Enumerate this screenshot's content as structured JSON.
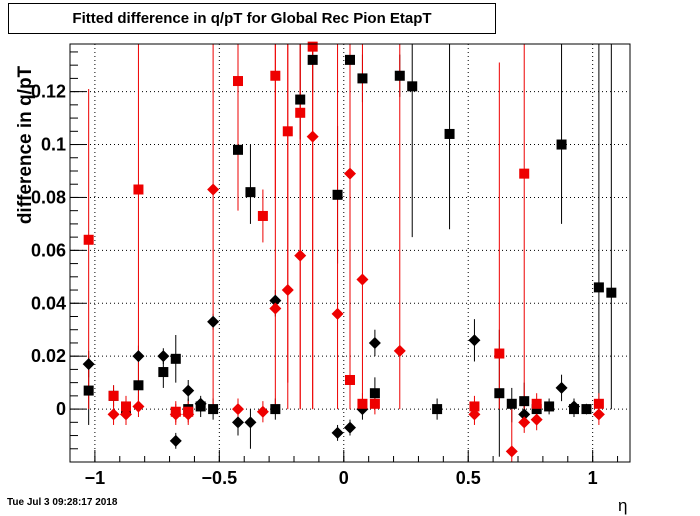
{
  "header": {
    "title": "Fitted difference in q/pT for Global Rec Pion EtapT",
    "timestamp": "Tue Jul  3 09:28:17 2018"
  },
  "chart_data": {
    "type": "scatter",
    "title": "Fitted difference in q/pT for Global Rec Pion EtapT",
    "xlabel": "η",
    "ylabel": "difference in q/pT",
    "xlim": [
      -1.1,
      1.15
    ],
    "ylim": [
      -0.02,
      0.138
    ],
    "x_ticks": [
      {
        "value": -1,
        "label": "−1"
      },
      {
        "value": -0.5,
        "label": "−0.5"
      },
      {
        "value": 0,
        "label": "0"
      },
      {
        "value": 0.5,
        "label": "0.5"
      },
      {
        "value": 1,
        "label": "1"
      }
    ],
    "y_ticks": [
      {
        "value": 0,
        "label": "0"
      },
      {
        "value": 0.02,
        "label": "0.02"
      },
      {
        "value": 0.04,
        "label": "0.04"
      },
      {
        "value": 0.06,
        "label": "0.06"
      },
      {
        "value": 0.08,
        "label": "0.08"
      },
      {
        "value": 0.1,
        "label": "0.1"
      },
      {
        "value": 0.12,
        "label": "0.12"
      }
    ],
    "grid": true,
    "colors": {
      "black": "#000000",
      "red": "#ee0000"
    },
    "series": [
      {
        "color": "black",
        "marker": "square",
        "points": [
          [
            -1.025,
            0.007,
            -0.006,
            0.02
          ],
          [
            -0.925,
            0.005,
            0.001,
            0.009
          ],
          [
            -0.875,
            0.0,
            -0.003,
            0.003
          ],
          [
            -0.825,
            0.009,
            0.003,
            0.016
          ],
          [
            -0.725,
            0.014,
            0.008,
            0.02
          ],
          [
            -0.675,
            0.019,
            0.01,
            0.028
          ],
          [
            -0.625,
            0.0,
            -0.004,
            0.004
          ],
          [
            -0.575,
            0.001,
            -0.003,
            0.004
          ],
          [
            -0.525,
            0.0,
            -0.004,
            0.004
          ],
          [
            -0.425,
            0.098,
            0.09,
            0.106
          ],
          [
            -0.375,
            0.082,
            0.07,
            0.1
          ],
          [
            -0.275,
            0.0,
            -0.004,
            0.004
          ],
          [
            -0.175,
            0.117,
            0.102,
            0.138
          ],
          [
            -0.125,
            0.132,
            0.12,
            0.138
          ],
          [
            -0.025,
            0.081,
            0.055,
            0.107
          ],
          [
            0.025,
            0.132,
            0.124,
            0.138
          ],
          [
            0.075,
            0.125,
            0.116,
            0.134
          ],
          [
            0.125,
            0.006,
            0.0,
            0.012
          ],
          [
            0.225,
            0.126,
            0.118,
            0.134
          ],
          [
            0.275,
            0.122,
            0.065,
            0.138
          ],
          [
            0.375,
            0.0,
            -0.004,
            0.004
          ],
          [
            0.425,
            0.104,
            0.068,
            0.138
          ],
          [
            0.625,
            0.006,
            -0.018,
            0.03
          ],
          [
            0.675,
            0.002,
            -0.005,
            0.008
          ],
          [
            0.725,
            0.003,
            -0.003,
            0.01
          ],
          [
            0.775,
            0.0,
            -0.002,
            0.003
          ],
          [
            0.825,
            0.001,
            -0.002,
            0.004
          ],
          [
            0.875,
            0.1,
            0.07,
            0.138
          ],
          [
            0.925,
            0.0,
            -0.003,
            0.003
          ],
          [
            0.975,
            0.0,
            -0.002,
            0.002
          ],
          [
            1.025,
            0.046,
            0.0,
            0.138
          ],
          [
            1.075,
            0.044,
            0.0,
            0.138
          ]
        ]
      },
      {
        "color": "black",
        "marker": "diamond",
        "points": [
          [
            -1.025,
            0.017,
            0.012,
            0.022
          ],
          [
            -0.825,
            0.02,
            0.016,
            0.024
          ],
          [
            -0.725,
            0.02,
            0.017,
            0.023
          ],
          [
            -0.675,
            -0.012,
            -0.015,
            -0.009
          ],
          [
            -0.625,
            0.007,
            0.003,
            0.011
          ],
          [
            -0.575,
            0.002,
            -0.001,
            0.005
          ],
          [
            -0.525,
            0.033,
            0.03,
            0.036
          ],
          [
            -0.425,
            -0.005,
            -0.01,
            0.0
          ],
          [
            -0.375,
            -0.005,
            -0.015,
            0.0
          ],
          [
            -0.275,
            0.041,
            0.035,
            0.045
          ],
          [
            -0.025,
            -0.009,
            -0.012,
            -0.006
          ],
          [
            0.025,
            -0.007,
            -0.01,
            -0.004
          ],
          [
            0.075,
            0.0,
            -0.004,
            0.004
          ],
          [
            0.125,
            0.025,
            0.02,
            0.03
          ],
          [
            0.525,
            0.026,
            0.018,
            0.034
          ],
          [
            0.725,
            -0.002,
            -0.006,
            0.002
          ],
          [
            0.875,
            0.008,
            0.003,
            0.013
          ],
          [
            0.925,
            0.001,
            -0.002,
            0.004
          ]
        ]
      },
      {
        "color": "red",
        "marker": "square",
        "points": [
          [
            -1.025,
            0.064,
            0.0,
            0.121
          ],
          [
            -0.925,
            0.005,
            0.001,
            0.009
          ],
          [
            -0.875,
            0.001,
            -0.003,
            0.005
          ],
          [
            -0.825,
            0.083,
            0.0,
            0.138
          ],
          [
            -0.675,
            -0.001,
            -0.005,
            0.003
          ],
          [
            -0.625,
            -0.001,
            -0.005,
            0.003
          ],
          [
            -0.425,
            0.124,
            0.075,
            0.138
          ],
          [
            -0.325,
            0.073,
            0.063,
            0.083
          ],
          [
            -0.275,
            0.126,
            0.08,
            0.138
          ],
          [
            -0.225,
            0.105,
            0.0,
            0.138
          ],
          [
            -0.175,
            0.112,
            0.0,
            0.138
          ],
          [
            -0.125,
            0.137,
            0.0,
            0.138
          ],
          [
            0.025,
            0.011,
            0.0,
            0.138
          ],
          [
            0.075,
            0.002,
            -0.002,
            0.006
          ],
          [
            0.125,
            0.002,
            -0.002,
            0.006
          ],
          [
            0.525,
            0.001,
            -0.003,
            0.005
          ],
          [
            0.625,
            0.021,
            0.0,
            0.131
          ],
          [
            0.725,
            0.089,
            0.0,
            0.138
          ],
          [
            0.775,
            0.002,
            -0.002,
            0.006
          ],
          [
            1.025,
            0.002,
            -0.002,
            0.006
          ]
        ]
      },
      {
        "color": "red",
        "marker": "diamond",
        "points": [
          [
            -0.925,
            -0.002,
            -0.006,
            0.002
          ],
          [
            -0.875,
            -0.002,
            -0.006,
            0.002
          ],
          [
            -0.825,
            0.001,
            -0.003,
            0.005
          ],
          [
            -0.675,
            -0.002,
            -0.006,
            0.002
          ],
          [
            -0.625,
            -0.002,
            -0.006,
            0.002
          ],
          [
            -0.525,
            0.083,
            0.0,
            0.138
          ],
          [
            -0.425,
            0.0,
            -0.004,
            0.004
          ],
          [
            -0.325,
            -0.001,
            -0.005,
            0.003
          ],
          [
            -0.275,
            0.038,
            0.0,
            0.138
          ],
          [
            -0.225,
            0.045,
            0.01,
            0.138
          ],
          [
            -0.175,
            0.058,
            0.0,
            0.138
          ],
          [
            -0.125,
            0.103,
            0.0,
            0.138
          ],
          [
            -0.025,
            0.036,
            0.0,
            0.138
          ],
          [
            0.025,
            0.089,
            0.0,
            0.138
          ],
          [
            0.075,
            0.049,
            0.0,
            0.138
          ],
          [
            0.225,
            0.022,
            0.0,
            0.138
          ],
          [
            0.525,
            -0.002,
            -0.006,
            0.002
          ],
          [
            0.675,
            -0.016,
            -0.02,
            0.0
          ],
          [
            0.725,
            -0.005,
            -0.009,
            -0.001
          ],
          [
            0.775,
            -0.004,
            -0.008,
            0.0
          ],
          [
            1.025,
            -0.002,
            -0.006,
            0.002
          ]
        ]
      }
    ]
  }
}
